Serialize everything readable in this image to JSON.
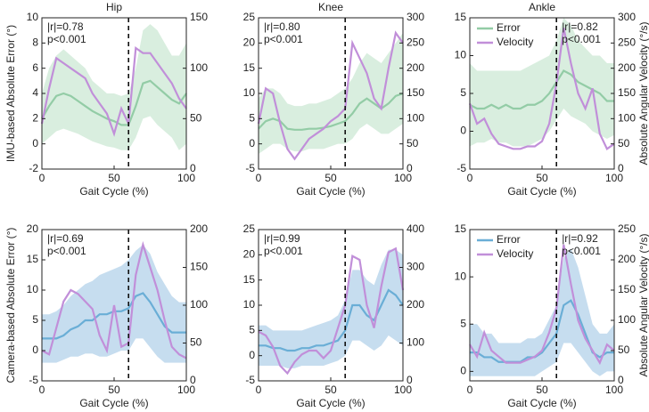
{
  "chart_data": [
    {
      "type": "line",
      "title": "Hip",
      "ylabel": "IMU-based Absolute Error (°)",
      "xlabel": "Gait Cycle (%)",
      "annotations": [
        "|r|=0.78",
        "p<0.001"
      ],
      "vline": 60,
      "xlim": [
        0,
        100
      ],
      "xticks": [
        0,
        50,
        100
      ],
      "ylim": [
        -2,
        10
      ],
      "yticks": [
        -2,
        0,
        2,
        4,
        6,
        8,
        10
      ],
      "y2lim": [
        0,
        150
      ],
      "y2ticks": [
        0,
        50,
        100,
        150
      ],
      "x": [
        0,
        5,
        10,
        15,
        20,
        25,
        30,
        35,
        40,
        45,
        50,
        55,
        60,
        65,
        70,
        75,
        80,
        85,
        90,
        95,
        100
      ],
      "series": [
        {
          "color": "#93cca6",
          "band_color": "#d9eedf",
          "values": [
            2,
            3,
            3.8,
            4,
            3.8,
            3.4,
            3,
            2.6,
            2.3,
            2,
            1.8,
            1.5,
            1.5,
            3,
            4.8,
            5,
            4.5,
            4,
            3.5,
            3.2,
            4
          ],
          "band_lower": [
            0,
            0.5,
            1,
            1.2,
            1,
            0.8,
            0.5,
            0.2,
            0,
            -0.2,
            -0.3,
            -0.5,
            -0.5,
            0.5,
            2,
            2.2,
            1.5,
            1,
            0.5,
            -0.5,
            0
          ],
          "band_upper": [
            4,
            6,
            7,
            7.5,
            7,
            6.5,
            6,
            5,
            4.5,
            4,
            4,
            3.8,
            4,
            6,
            9,
            9.5,
            9,
            8,
            7,
            7,
            8
          ]
        },
        {
          "color": "#c18fd9",
          "axis": "y2",
          "values": [
            45,
            80,
            110,
            105,
            100,
            95,
            90,
            75,
            65,
            55,
            35,
            60,
            45,
            120,
            115,
            115,
            105,
            95,
            85,
            70,
            60
          ]
        }
      ]
    },
    {
      "type": "line",
      "title": "Knee",
      "xlabel": "Gait Cycle (%)",
      "annotations": [
        "|r|=0.80",
        "p<0.001"
      ],
      "vline": 60,
      "xlim": [
        0,
        100
      ],
      "xticks": [
        0,
        50,
        100
      ],
      "ylim": [
        -5,
        25
      ],
      "yticks": [
        -5,
        0,
        5,
        10,
        15,
        20,
        25
      ],
      "y2lim": [
        0,
        300
      ],
      "y2ticks": [
        0,
        50,
        100,
        150,
        200,
        250,
        300
      ],
      "x": [
        0,
        5,
        10,
        15,
        20,
        25,
        30,
        35,
        40,
        45,
        50,
        55,
        60,
        65,
        70,
        75,
        80,
        85,
        90,
        95,
        100
      ],
      "series": [
        {
          "color": "#93cca6",
          "band_color": "#d9eedf",
          "values": [
            3,
            4.5,
            5,
            4.5,
            3,
            2.8,
            2.8,
            3,
            3,
            3.2,
            3.5,
            4,
            4.5,
            6,
            8,
            9,
            8,
            7,
            8,
            9.5,
            10
          ],
          "band_lower": [
            -2,
            -1,
            0,
            0,
            -1,
            -1.5,
            -1.5,
            -1,
            -1,
            -1,
            -0.5,
            0,
            0,
            1,
            3,
            4,
            3,
            2,
            2,
            3,
            4
          ],
          "band_upper": [
            9,
            11,
            11,
            10,
            8,
            7.5,
            7.5,
            8,
            8,
            8.5,
            9,
            10,
            11,
            13,
            16,
            18,
            17,
            16,
            18,
            20,
            22
          ]
        },
        {
          "color": "#c18fd9",
          "axis": "y2",
          "values": [
            90,
            160,
            150,
            90,
            40,
            20,
            40,
            60,
            70,
            80,
            95,
            105,
            120,
            250,
            220,
            190,
            140,
            120,
            200,
            270,
            250
          ]
        }
      ]
    },
    {
      "type": "line",
      "title": "Ankle",
      "y2label": "Absolute Angular Velocity (°/s)",
      "xlabel": "Gait Cycle (%)",
      "annotations": [
        "|r|=0.82",
        "p<0.001"
      ],
      "vline": 60,
      "legend": "upper left",
      "xlim": [
        0,
        100
      ],
      "xticks": [
        0,
        50,
        100
      ],
      "ylim": [
        -5,
        15
      ],
      "yticks": [
        -5,
        0,
        5,
        10,
        15
      ],
      "y2lim": [
        0,
        300
      ],
      "y2ticks": [
        0,
        50,
        100,
        150,
        200,
        250,
        300
      ],
      "x": [
        0,
        5,
        10,
        15,
        20,
        25,
        30,
        35,
        40,
        45,
        50,
        55,
        60,
        65,
        70,
        75,
        80,
        85,
        90,
        95,
        100
      ],
      "series": [
        {
          "name": "Error",
          "color": "#93cca6",
          "band_color": "#d9eedf",
          "values": [
            3.5,
            3,
            3,
            3.5,
            3,
            3.5,
            3,
            3,
            3.5,
            3.5,
            4,
            5,
            6.5,
            8,
            7.5,
            6.5,
            6,
            5.5,
            5,
            4,
            4
          ],
          "band_lower": [
            -2,
            -1.5,
            -1.5,
            -1,
            -1.5,
            -1.5,
            -2,
            -2,
            -2,
            -1.5,
            -1,
            0,
            1.5,
            3,
            2,
            1.5,
            1,
            0,
            -0.5,
            -1,
            -0.5
          ],
          "band_upper": [
            9,
            8,
            8,
            8,
            8,
            8,
            8,
            8,
            8.5,
            9,
            9.5,
            10,
            12,
            15,
            14,
            12,
            11,
            10,
            10,
            9,
            9
          ]
        },
        {
          "name": "Velocity",
          "color": "#c18fd9",
          "axis": "y2",
          "values": [
            130,
            90,
            100,
            70,
            50,
            45,
            40,
            40,
            45,
            45,
            55,
            90,
            170,
            280,
            210,
            150,
            120,
            160,
            70,
            40,
            50
          ]
        }
      ]
    },
    {
      "type": "line",
      "ylabel": "Camera-based Absolute Error (°)",
      "xlabel": "Gait Cycle (%)",
      "annotations": [
        "|r|=0.69",
        "p<0.001"
      ],
      "vline": 60,
      "xlim": [
        0,
        100
      ],
      "xticks": [
        0,
        50,
        100
      ],
      "ylim": [
        -5,
        20
      ],
      "yticks": [
        -5,
        0,
        5,
        10,
        15,
        20
      ],
      "y2lim": [
        0,
        200
      ],
      "y2ticks": [
        0,
        50,
        100,
        150,
        200
      ],
      "x": [
        0,
        5,
        10,
        15,
        20,
        25,
        30,
        35,
        40,
        45,
        50,
        55,
        60,
        65,
        70,
        75,
        80,
        85,
        90,
        95,
        100
      ],
      "series": [
        {
          "color": "#6aaed6",
          "band_color": "#c6ddef",
          "values": [
            2,
            2,
            2,
            2.5,
            3.5,
            4,
            5,
            5,
            6,
            6,
            6.5,
            6.5,
            7,
            9,
            9.5,
            8,
            6,
            4,
            3,
            3,
            3
          ],
          "band_lower": [
            -2,
            -2,
            -2,
            -1.5,
            -1,
            -1,
            -0.5,
            -0.5,
            -1,
            -1,
            -0.5,
            0,
            0,
            2,
            2,
            0.5,
            -1,
            -2,
            -2,
            -2,
            -2
          ],
          "band_upper": [
            6,
            6,
            6.5,
            7.5,
            9,
            10,
            11,
            11.5,
            12.5,
            13,
            13.5,
            14,
            15,
            16.5,
            17.5,
            16,
            13,
            11,
            9,
            8,
            8
          ]
        },
        {
          "color": "#c18fd9",
          "axis": "y2",
          "values": [
            40,
            35,
            70,
            105,
            120,
            115,
            105,
            95,
            60,
            40,
            100,
            45,
            50,
            140,
            180,
            150,
            120,
            80,
            45,
            35,
            30
          ]
        }
      ]
    },
    {
      "type": "line",
      "xlabel": "Gait Cycle (%)",
      "annotations": [
        "|r|=0.99",
        "p<0.001"
      ],
      "vline": 60,
      "xlim": [
        0,
        100
      ],
      "xticks": [
        0,
        50,
        100
      ],
      "ylim": [
        -5,
        25
      ],
      "yticks": [
        -5,
        0,
        5,
        10,
        15,
        20,
        25
      ],
      "y2lim": [
        0,
        400
      ],
      "y2ticks": [
        0,
        100,
        200,
        300,
        400
      ],
      "x": [
        0,
        5,
        10,
        15,
        20,
        25,
        30,
        35,
        40,
        45,
        50,
        55,
        60,
        65,
        70,
        75,
        80,
        85,
        90,
        95,
        100
      ],
      "series": [
        {
          "color": "#6aaed6",
          "band_color": "#c6ddef",
          "values": [
            2,
            2,
            1.5,
            1.5,
            1,
            1,
            1.5,
            1.5,
            2,
            2,
            2.5,
            3,
            5,
            10,
            10,
            8,
            7,
            10,
            13,
            12,
            10
          ],
          "band_lower": [
            -2,
            -2,
            -2,
            -2,
            -2.5,
            -2.5,
            -2,
            -2,
            -2,
            -2,
            -1.5,
            -1,
            0,
            3,
            3,
            2,
            1,
            2,
            4,
            3,
            2
          ],
          "band_upper": [
            6,
            6,
            5,
            5,
            5,
            5,
            5,
            5.5,
            6,
            6.5,
            7,
            8,
            11,
            17,
            17,
            15,
            14,
            18,
            21,
            21,
            20
          ]
        },
        {
          "color": "#c18fd9",
          "axis": "y2",
          "values": [
            130,
            120,
            90,
            40,
            20,
            50,
            70,
            80,
            80,
            60,
            80,
            140,
            200,
            330,
            320,
            200,
            140,
            250,
            340,
            350,
            240
          ]
        }
      ]
    },
    {
      "type": "line",
      "y2label": "Absolute Angular Velocity (°/s)",
      "xlabel": "Gait Cycle (%)",
      "annotations": [
        "|r|=0.92",
        "p<0.001"
      ],
      "vline": 60,
      "legend": "upper left",
      "xlim": [
        0,
        100
      ],
      "xticks": [
        0,
        50,
        100
      ],
      "ylim": [
        -1,
        15
      ],
      "yticks": [
        0,
        5,
        10,
        15
      ],
      "y2lim": [
        0,
        250
      ],
      "y2ticks": [
        0,
        50,
        100,
        150,
        200,
        250
      ],
      "x": [
        0,
        5,
        10,
        15,
        20,
        25,
        30,
        35,
        40,
        45,
        50,
        55,
        60,
        65,
        70,
        75,
        80,
        85,
        90,
        95,
        100
      ],
      "series": [
        {
          "name": "Error",
          "color": "#6aaed6",
          "band_color": "#c6ddef",
          "values": [
            2,
            2,
            1.5,
            1.5,
            1,
            1,
            1,
            1,
            1.5,
            1.5,
            2,
            3,
            4,
            7,
            7.5,
            6,
            4,
            2,
            1.5,
            2,
            2
          ],
          "band_lower": [
            -0.5,
            -0.5,
            -0.5,
            -0.5,
            -0.5,
            -0.5,
            -0.5,
            -0.5,
            -0.5,
            -0.5,
            0,
            0.5,
            1,
            3,
            3,
            2,
            1,
            0,
            -0.5,
            0,
            0
          ],
          "band_upper": [
            5,
            5,
            4,
            4,
            3,
            3,
            3,
            3,
            3.5,
            3.5,
            4,
            5.5,
            7,
            12,
            13,
            11,
            8,
            5,
            4,
            4,
            5
          ]
        },
        {
          "name": "Velocity",
          "color": "#c18fd9",
          "axis": "y2",
          "values": [
            60,
            40,
            80,
            50,
            40,
            30,
            30,
            30,
            35,
            40,
            50,
            80,
            120,
            225,
            160,
            100,
            70,
            50,
            30,
            60,
            50
          ]
        }
      ]
    }
  ]
}
